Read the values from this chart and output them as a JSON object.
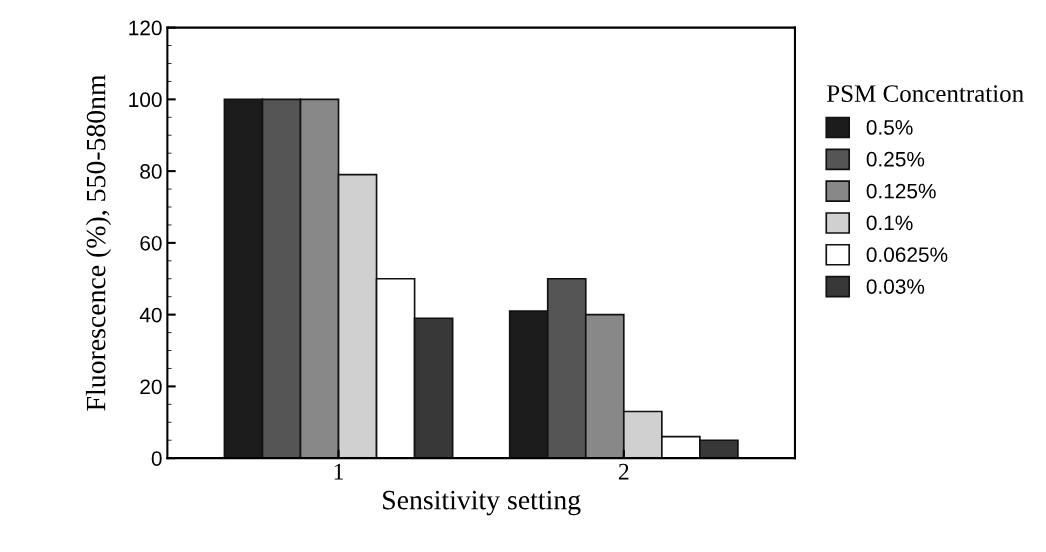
{
  "chart_data": {
    "type": "bar",
    "xlabel": "Sensitivity setting",
    "ylabel": "Fluorescence (%), 550-580nm",
    "legend_title": "PSM Concentration",
    "categories": [
      "1",
      "2"
    ],
    "series": [
      {
        "name": "0.5%",
        "color": "#1c1c1c",
        "values": [
          100,
          41
        ]
      },
      {
        "name": "0.25%",
        "color": "#555555",
        "values": [
          100,
          50
        ]
      },
      {
        "name": "0.125%",
        "color": "#888888",
        "values": [
          100,
          40
        ]
      },
      {
        "name": "0.1%",
        "color": "#d0d0d0",
        "values": [
          79,
          13
        ]
      },
      {
        "name": "0.0625%",
        "color": "#ffffff",
        "values": [
          50,
          6
        ]
      },
      {
        "name": "0.03%",
        "color": "#383838",
        "values": [
          39,
          5
        ]
      }
    ],
    "ylim": [
      0,
      120
    ],
    "yticks": [
      0,
      20,
      40,
      60,
      80,
      100,
      120
    ],
    "legend": "right",
    "grid": false
  }
}
